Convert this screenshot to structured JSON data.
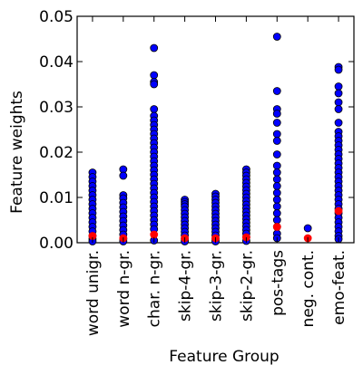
{
  "chart_data": {
    "type": "scatter",
    "xlabel": "Feature Group",
    "ylabel": "Feature weights",
    "ylim": [
      0,
      0.05
    ],
    "yticks": [
      "0.00",
      "0.01",
      "0.02",
      "0.03",
      "0.04",
      "0.05"
    ],
    "ytick_values": [
      0,
      0.01,
      0.02,
      0.03,
      0.04,
      0.05
    ],
    "categories": [
      "word unigr.",
      "word n-gr.",
      "char. n-gr.",
      "skip-4-gr.",
      "skip-3-gr.",
      "skip-2-gr.",
      "pos-tags",
      "neg. cont.",
      "emo-feat."
    ],
    "grid": false,
    "colors": {
      "weights": "#0000ff",
      "mean": "#ff0000",
      "edge": "#000000"
    },
    "series": [
      {
        "values": [
          [
            0.0155,
            0.0145,
            0.0135,
            0.0125,
            0.0115,
            0.0105,
            0.0095,
            0.0085,
            0.0075,
            0.0065,
            0.0055,
            0.0045,
            0.0035,
            0.0025,
            0.0015,
            0.0008,
            0.0003
          ],
          [
            0.0162,
            0.0148,
            0.0105,
            0.0098,
            0.0088,
            0.0078,
            0.0068,
            0.0058,
            0.0048,
            0.0038,
            0.0028,
            0.0018,
            0.0008,
            0.0003
          ],
          [
            0.043,
            0.037,
            0.0355,
            0.035,
            0.0295,
            0.028,
            0.027,
            0.026,
            0.025,
            0.024,
            0.023,
            0.022,
            0.021,
            0.02,
            0.019,
            0.018,
            0.017,
            0.016,
            0.015,
            0.014,
            0.013,
            0.012,
            0.011,
            0.01,
            0.009,
            0.008,
            0.007,
            0.006,
            0.005,
            0.004,
            0.003,
            0.0005
          ],
          [
            0.0095,
            0.009,
            0.0085,
            0.008,
            0.0072,
            0.0064,
            0.0056,
            0.0048,
            0.004,
            0.0032,
            0.0024,
            0.0016,
            0.0008,
            0.0003
          ],
          [
            0.0108,
            0.0102,
            0.0095,
            0.0088,
            0.008,
            0.0072,
            0.0064,
            0.0056,
            0.0048,
            0.004,
            0.0032,
            0.0024,
            0.0016,
            0.0008,
            0.0003
          ],
          [
            0.0162,
            0.0155,
            0.0148,
            0.014,
            0.0132,
            0.0124,
            0.0116,
            0.0108,
            0.01,
            0.0092,
            0.0084,
            0.0076,
            0.0068,
            0.006,
            0.0052,
            0.0044,
            0.0036,
            0.0028,
            0.002,
            0.0012,
            0.0004
          ],
          [
            0.0455,
            0.0335,
            0.0295,
            0.0285,
            0.0265,
            0.024,
            0.0225,
            0.0195,
            0.017,
            0.0155,
            0.014,
            0.0125,
            0.011,
            0.0095,
            0.008,
            0.0065,
            0.005,
            0.0035,
            0.002,
            0.001
          ],
          [
            0.0032
          ],
          [
            0.0388,
            0.0382,
            0.0345,
            0.033,
            0.031,
            0.0295,
            0.0265,
            0.0245,
            0.0235,
            0.0225,
            0.0215,
            0.0205,
            0.0195,
            0.0185,
            0.0175,
            0.0165,
            0.0155,
            0.0145,
            0.0135,
            0.0125,
            0.0115,
            0.0105,
            0.0095,
            0.0085,
            0.0075,
            0.0065,
            0.0055,
            0.0045,
            0.0035,
            0.0025,
            0.0015,
            0.0008
          ]
        ]
      },
      {
        "values": [
          0.0015,
          0.001,
          0.0018,
          0.001,
          0.001,
          0.0012,
          0.0035,
          0.001,
          0.007
        ]
      }
    ]
  }
}
